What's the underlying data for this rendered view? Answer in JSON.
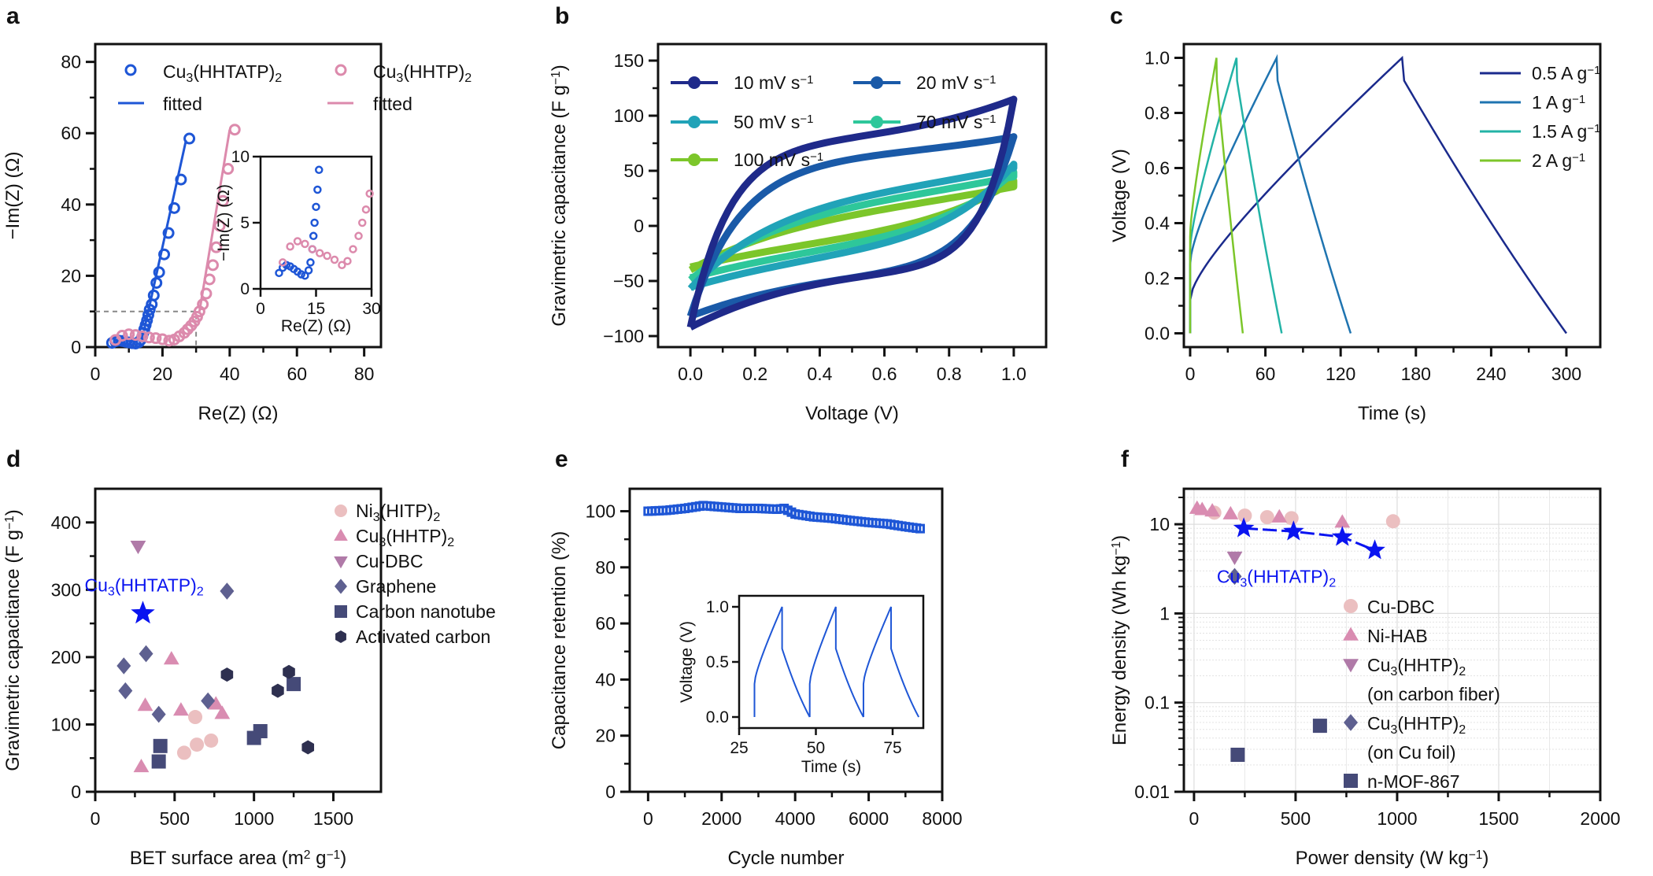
{
  "figure": {
    "panels": [
      "a",
      "b",
      "c",
      "d",
      "e",
      "f"
    ]
  },
  "chart_data": [
    {
      "id": "a",
      "type": "scatter",
      "panel_label": "a",
      "xlabel": "Re(Z) (Ω)",
      "ylabel": "−Im(Z) (Ω)",
      "xlim": [
        0,
        85
      ],
      "ylim": [
        0,
        85
      ],
      "xticks": [
        0,
        20,
        40,
        60,
        80
      ],
      "yticks": [
        0,
        20,
        40,
        60,
        80
      ],
      "colors": {
        "HHTATP": "#1e56d6",
        "HHTP": "#dc8aac",
        "guide": "#888888"
      },
      "legend": [
        {
          "label": "Cu₃(HHTATP)₂",
          "kind": "marker-circle-open",
          "series": "HHTATP"
        },
        {
          "label": "Cu₃(HHTP)₂",
          "kind": "marker-circle-open",
          "series": "HHTP"
        },
        {
          "label": "fitted",
          "kind": "line",
          "series": "HHTATP"
        },
        {
          "label": "fitted",
          "kind": "line",
          "series": "HHTP"
        }
      ],
      "guide_box": {
        "x": 30,
        "y": 10
      },
      "series": [
        {
          "name": "Cu₃(HHTATP)₂",
          "key": "HHTATP",
          "x": [
            5,
            6,
            7,
            8,
            9,
            10,
            11,
            12,
            13,
            13.5,
            14,
            14.3,
            14.6,
            15,
            15.4,
            15.8,
            16.2,
            16.8,
            17.4,
            18.2,
            19,
            20.5,
            21.8,
            23.5,
            25.5,
            28
          ],
          "y": [
            1.2,
            1.6,
            1.8,
            1.7,
            1.5,
            1.3,
            1.1,
            1.0,
            1.4,
            2.0,
            3.0,
            4.0,
            5.0,
            6.2,
            7.5,
            9,
            10.5,
            12,
            14.5,
            18,
            21,
            26,
            32,
            39,
            47,
            58.5
          ],
          "fit_x": [
            14.6,
            27
          ],
          "fit_y": [
            5,
            58
          ]
        },
        {
          "name": "Cu₃(HHTP)₂",
          "key": "HHTP",
          "x": [
            6,
            8,
            10,
            12,
            14,
            16,
            18,
            20,
            22,
            23.5,
            25,
            26.5,
            27.5,
            28.5,
            29.5,
            30.3,
            31,
            32,
            33,
            34,
            35,
            36,
            37,
            38,
            39.5,
            41.5
          ],
          "y": [
            2,
            3.2,
            3.6,
            3.4,
            3.0,
            2.7,
            2.5,
            2.2,
            1.8,
            2.1,
            3,
            4,
            5,
            6,
            7.2,
            8.5,
            10,
            12,
            15,
            19,
            23,
            28,
            34,
            41,
            50,
            61
          ],
          "fit_x": [
            31,
            40
          ],
          "fit_y": [
            10,
            61
          ]
        }
      ],
      "inset": {
        "xlabel": "Re(Z) (Ω)",
        "ylabel": "−Im(Z) (Ω)",
        "xlim": [
          0,
          30
        ],
        "ylim": [
          0,
          10
        ],
        "xticks": [
          0,
          15,
          30
        ],
        "yticks": [
          0,
          5,
          10
        ]
      }
    },
    {
      "id": "b",
      "type": "line",
      "panel_label": "b",
      "xlabel": "Voltage (V)",
      "ylabel": "Gravimetric capacitance (F g⁻¹)",
      "xlim": [
        -0.1,
        1.1
      ],
      "ylim": [
        -110,
        165
      ],
      "xticks": [
        0.0,
        0.2,
        0.4,
        0.6,
        0.8,
        1.0
      ],
      "xtick_labels": [
        "0.0",
        "0.2",
        "0.4",
        "0.6",
        "0.8",
        "1.0"
      ],
      "yticks": [
        -100,
        -50,
        0,
        50,
        100,
        150
      ],
      "series": [
        {
          "name": "10 mV s⁻¹",
          "color": "#1f2a8a",
          "upper_end": 115,
          "upper_mid": 78,
          "lower_start": -92,
          "lower_mid": -42,
          "sharp": 0.12
        },
        {
          "name": "20 mV s⁻¹",
          "color": "#1a5aa8",
          "upper_end": 81,
          "upper_mid": 65,
          "lower_start": -82,
          "lower_mid": -45,
          "sharp": 0.16
        },
        {
          "name": "50 mV s⁻¹",
          "color": "#21a3b8",
          "upper_end": 56,
          "upper_mid": 40,
          "lower_start": -57,
          "lower_mid": -30,
          "sharp": 0.3
        },
        {
          "name": "70 mV s⁻¹",
          "color": "#2ec79a",
          "upper_end": 49,
          "upper_mid": 34,
          "lower_start": -49,
          "lower_mid": -25,
          "sharp": 0.34
        },
        {
          "name": "100 mV s⁻¹",
          "color": "#7cc62a",
          "upper_end": 41,
          "upper_mid": 27,
          "lower_start": -40,
          "lower_mid": -20,
          "sharp": 0.4
        }
      ]
    },
    {
      "id": "c",
      "type": "line",
      "panel_label": "c",
      "xlabel": "Time (s)",
      "ylabel": "Voltage (V)",
      "xlim": [
        -5,
        327
      ],
      "ylim": [
        -0.05,
        1.05
      ],
      "xticks": [
        0,
        60,
        120,
        180,
        240,
        300
      ],
      "yticks": [
        0.0,
        0.2,
        0.4,
        0.6,
        0.8,
        1.0
      ],
      "ytick_labels": [
        "0.0",
        "0.2",
        "0.4",
        "0.6",
        "0.8",
        "1.0"
      ],
      "series": [
        {
          "name": "0.5 A g⁻¹",
          "color": "#1a2a8c",
          "t_peak": 169,
          "t_end": 300,
          "v0": 0.12
        },
        {
          "name": "1 A g⁻¹",
          "color": "#1f74b0",
          "t_peak": 69,
          "t_end": 128,
          "v0": 0.25
        },
        {
          "name": "1.5 A g⁻¹",
          "color": "#23b3a6",
          "t_peak": 37,
          "t_end": 73,
          "v0": 0.3
        },
        {
          "name": "2 A g⁻¹",
          "color": "#7cc62a",
          "t_peak": 21,
          "t_end": 42,
          "v0": 0.35
        }
      ]
    },
    {
      "id": "d",
      "type": "scatter",
      "panel_label": "d",
      "xlabel": "BET surface area (m² g⁻¹)",
      "ylabel": "Gravimetric capacitance (F g⁻¹)",
      "xlim": [
        0,
        1800
      ],
      "ylim": [
        0,
        450
      ],
      "xticks": [
        0,
        500,
        1000,
        1500
      ],
      "yticks": [
        0,
        100,
        200,
        300,
        400
      ],
      "annotation": {
        "text": "Cu₃(HHTATP)₂",
        "x": 300,
        "y": 265,
        "color": "#0a14f0"
      },
      "series": [
        {
          "name": "Ni₃(HITP)₂",
          "marker": "circle",
          "color": "#ebbfc0",
          "points": [
            [
              560,
              58
            ],
            [
              640,
              70
            ],
            [
              730,
              76
            ],
            [
              630,
              111
            ]
          ]
        },
        {
          "name": "Cu₃(HHTP)₂",
          "marker": "triangle-up",
          "color": "#d98cb1",
          "points": [
            [
              290,
              37
            ],
            [
              315,
              128
            ],
            [
              480,
              197
            ],
            [
              540,
              121
            ],
            [
              760,
              130
            ],
            [
              800,
              116
            ]
          ]
        },
        {
          "name": "Cu-DBC",
          "marker": "triangle-down",
          "color": "#b07aa8",
          "points": [
            [
              270,
              365
            ]
          ]
        },
        {
          "name": "Graphene",
          "marker": "diamond",
          "color": "#5e6090",
          "points": [
            [
              180,
              187
            ],
            [
              190,
              150
            ],
            [
              320,
              205
            ],
            [
              400,
              115
            ],
            [
              710,
              135
            ],
            [
              830,
              298
            ]
          ]
        },
        {
          "name": "Carbon nanotube",
          "marker": "square",
          "color": "#454a78",
          "points": [
            [
              400,
              45
            ],
            [
              410,
              68
            ],
            [
              1000,
              80
            ],
            [
              1040,
              90
            ],
            [
              1250,
              160
            ]
          ]
        },
        {
          "name": "Activated carbon",
          "marker": "hexagon",
          "color": "#2e3050",
          "points": [
            [
              830,
              174
            ],
            [
              1150,
              150
            ],
            [
              1220,
              178
            ],
            [
              1340,
              66
            ]
          ]
        },
        {
          "name": "Cu₃(HHTATP)₂",
          "marker": "star",
          "color": "#0a14f0",
          "legend": false,
          "points": [
            [
              300,
              265
            ]
          ]
        }
      ]
    },
    {
      "id": "e",
      "type": "line",
      "panel_label": "e",
      "xlabel": "Cycle number",
      "ylabel": "Capacitance retention (%)",
      "xlim": [
        -500,
        8000
      ],
      "ylim": [
        0,
        108
      ],
      "xticks": [
        0,
        2000,
        4000,
        6000,
        8000
      ],
      "yticks": [
        0,
        20,
        40,
        60,
        80,
        100
      ],
      "color": "#1e56d6",
      "series": [
        {
          "name": "retention",
          "x": [
            0,
            500,
            1000,
            1500,
            2000,
            2500,
            3000,
            3500,
            3700,
            4000,
            4500,
            5000,
            5500,
            6000,
            6500,
            7000,
            7400
          ],
          "y": [
            100,
            100.3,
            101,
            102,
            101.5,
            101,
            101,
            100.7,
            101,
            99,
            98,
            97.5,
            96.7,
            96,
            95.5,
            94.5,
            93.8
          ]
        }
      ],
      "inset": {
        "xlabel": "Time (s)",
        "ylabel": "Voltage (V)",
        "xlim": [
          25,
          85
        ],
        "ylim": [
          -0.1,
          1.1
        ],
        "xticks": [
          25,
          50,
          75
        ],
        "yticks": [
          0.0,
          0.5,
          1.0
        ],
        "ytick_labels": [
          "0.0",
          "0.5",
          "1.0"
        ],
        "cycles": [
          [
            30,
            39,
            48
          ],
          [
            48,
            56.5,
            65.5
          ],
          [
            65.5,
            74.5,
            83.5
          ]
        ]
      }
    },
    {
      "id": "f",
      "type": "scatter",
      "panel_label": "f",
      "xlabel": "Power density (W kg⁻¹)",
      "ylabel": "Energy density (Wh kg⁻¹)",
      "xscale": "linear",
      "yscale": "log",
      "xlim": [
        -50,
        2000
      ],
      "ylim": [
        0.01,
        25
      ],
      "xticks": [
        0,
        500,
        1000,
        1500,
        2000
      ],
      "yticks": [
        0.01,
        0.1,
        1,
        10
      ],
      "ytick_labels": [
        "0.01",
        "0.1",
        "1",
        "10"
      ],
      "grid": true,
      "annotation": {
        "text": "Cu₃(HHTATP)₂",
        "x": 500,
        "y": 2.6,
        "color": "#0a14f0"
      },
      "series": [
        {
          "name": "Cu-DBC",
          "marker": "circle",
          "color": "#ebbfc0",
          "points": [
            [
              100,
              13.5
            ],
            [
              250,
              12.5
            ],
            [
              360,
              12
            ],
            [
              480,
              11.7
            ],
            [
              980,
              10.8
            ]
          ]
        },
        {
          "name": "Ni-HAB",
          "marker": "triangle-up",
          "color": "#d98cb1",
          "points": [
            [
              15,
              15
            ],
            [
              40,
              14.5
            ],
            [
              90,
              14
            ],
            [
              180,
              13
            ],
            [
              420,
              12
            ],
            [
              730,
              10.5
            ]
          ]
        },
        {
          "name": "Cu₃(HHTP)₂\n(on carbon fiber)",
          "marker": "triangle-down",
          "color": "#b07aa8",
          "points": [
            [
              200,
              4.3
            ]
          ]
        },
        {
          "name": "Cu₃(HHTP)₂\n(on Cu foil)",
          "marker": "diamond",
          "color": "#5e6090",
          "points": [
            [
              200,
              2.6
            ]
          ]
        },
        {
          "name": "n-MOF-867",
          "marker": "square",
          "color": "#454a78",
          "points": [
            [
              215,
              0.026
            ],
            [
              620,
              0.055
            ]
          ]
        },
        {
          "name": "Cu₃(HHTATP)₂",
          "marker": "star",
          "color": "#0a14f0",
          "legend": false,
          "connected": true,
          "points": [
            [
              245,
              9
            ],
            [
              490,
              8.3
            ],
            [
              730,
              7.2
            ],
            [
              890,
              5.1
            ]
          ]
        }
      ]
    }
  ]
}
